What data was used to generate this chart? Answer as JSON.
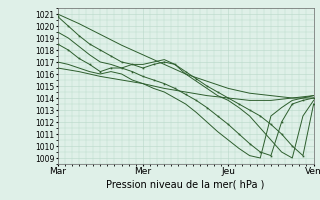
{
  "xlabel": "Pression niveau de la mer( hPa )",
  "xlim": [
    0,
    72
  ],
  "ylim": [
    1008.5,
    1021.5
  ],
  "yticks": [
    1009,
    1010,
    1011,
    1012,
    1013,
    1014,
    1015,
    1016,
    1017,
    1018,
    1019,
    1020,
    1021
  ],
  "xtick_positions": [
    0,
    24,
    48,
    72
  ],
  "xtick_labels": [
    "Mar",
    "Mer",
    "Jeu",
    "Ven"
  ],
  "bg_color": "#dff0e8",
  "grid_color": "#b8d8c8",
  "line_color": "#2d5e2d",
  "dot_color": "#2d5e2d",
  "lines": [
    {
      "x": [
        0,
        6,
        12,
        18,
        24,
        30,
        36,
        42,
        48,
        54,
        60,
        66,
        72
      ],
      "y": [
        1021.0,
        1020.2,
        1019.3,
        1018.4,
        1017.6,
        1016.8,
        1016.0,
        1015.4,
        1014.8,
        1014.4,
        1014.2,
        1014.0,
        1014.0
      ],
      "dots": false
    },
    {
      "x": [
        0,
        3,
        6,
        9,
        12,
        15,
        18,
        21,
        24,
        27,
        30,
        33,
        36,
        39,
        42,
        45,
        48,
        51,
        54,
        57,
        60,
        63,
        66,
        69,
        72
      ],
      "y": [
        1020.8,
        1020.0,
        1019.2,
        1018.5,
        1018.0,
        1017.5,
        1017.0,
        1016.8,
        1016.5,
        1016.8,
        1017.0,
        1016.8,
        1016.2,
        1015.6,
        1015.0,
        1014.5,
        1014.0,
        1013.5,
        1013.0,
        1012.5,
        1011.8,
        1011.0,
        1010.0,
        1009.2,
        1013.5
      ],
      "dots": true
    },
    {
      "x": [
        0,
        3,
        6,
        9,
        12,
        15,
        18,
        21,
        24,
        27,
        30,
        33,
        36,
        39,
        42,
        45,
        48,
        51,
        54,
        57,
        60,
        63,
        66,
        69,
        72
      ],
      "y": [
        1019.5,
        1019.0,
        1018.3,
        1017.6,
        1017.0,
        1016.8,
        1016.5,
        1016.8,
        1016.8,
        1017.0,
        1017.2,
        1016.8,
        1016.0,
        1015.4,
        1014.8,
        1014.2,
        1013.8,
        1013.2,
        1012.5,
        1011.5,
        1010.5,
        1009.5,
        1009.0,
        1012.5,
        1013.8
      ],
      "dots": false
    },
    {
      "x": [
        0,
        3,
        6,
        9,
        12,
        15,
        18,
        21,
        24,
        27,
        30,
        33,
        36,
        39,
        42,
        45,
        48,
        51,
        54,
        57,
        60,
        63,
        66,
        69,
        72
      ],
      "y": [
        1018.5,
        1018.0,
        1017.3,
        1016.8,
        1016.2,
        1016.5,
        1016.5,
        1016.2,
        1015.8,
        1015.5,
        1015.2,
        1014.8,
        1014.3,
        1013.8,
        1013.2,
        1012.5,
        1011.8,
        1011.0,
        1010.2,
        1009.5,
        1009.2,
        1012.0,
        1013.5,
        1013.8,
        1014.0
      ],
      "dots": true
    },
    {
      "x": [
        0,
        3,
        6,
        9,
        12,
        15,
        18,
        21,
        24,
        27,
        30,
        33,
        36,
        39,
        42,
        45,
        48,
        51,
        54,
        57,
        60,
        63,
        66,
        69,
        72
      ],
      "y": [
        1017.0,
        1016.8,
        1016.5,
        1016.2,
        1016.0,
        1016.2,
        1016.0,
        1015.5,
        1015.2,
        1014.8,
        1014.5,
        1014.0,
        1013.5,
        1012.8,
        1012.0,
        1011.2,
        1010.5,
        1009.8,
        1009.2,
        1009.0,
        1012.5,
        1013.2,
        1013.8,
        1014.0,
        1014.2
      ],
      "dots": false
    },
    {
      "x": [
        0,
        6,
        12,
        18,
        24,
        30,
        36,
        42,
        48,
        54,
        60,
        66,
        72
      ],
      "y": [
        1016.5,
        1016.2,
        1015.8,
        1015.5,
        1015.2,
        1014.8,
        1014.5,
        1014.2,
        1014.0,
        1013.8,
        1013.8,
        1014.0,
        1014.2
      ],
      "dots": false
    }
  ]
}
